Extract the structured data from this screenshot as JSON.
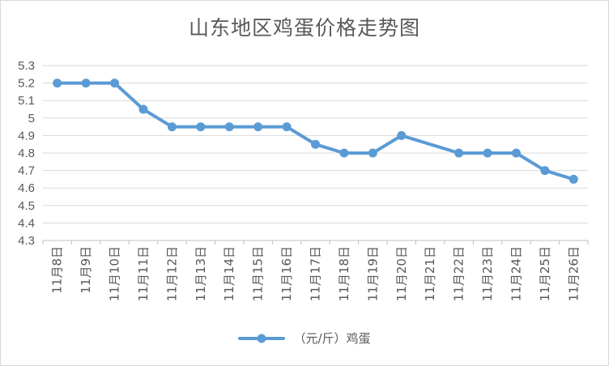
{
  "title": "山东地区鸡蛋价格走势图",
  "chart_data": {
    "type": "line",
    "title": "山东地区鸡蛋价格走势图",
    "xlabel": "",
    "ylabel": "",
    "ylim": [
      4.3,
      5.3
    ],
    "y_ticks": [
      "5.3",
      "5.2",
      "5.1",
      "5",
      "4.9",
      "4.8",
      "4.7",
      "4.6",
      "4.5",
      "4.4",
      "4.3"
    ],
    "y_tick_values": [
      5.3,
      5.2,
      5.1,
      5.0,
      4.9,
      4.8,
      4.7,
      4.6,
      4.5,
      4.4,
      4.3
    ],
    "categories": [
      "11月8日",
      "11月9日",
      "11月10日",
      "11月11日",
      "11月12日",
      "11月13日",
      "11月14日",
      "11月15日",
      "11月16日",
      "11月17日",
      "11月18日",
      "11月19日",
      "11月20日",
      "11月21日",
      "11月22日",
      "11月23日",
      "11月24日",
      "11月25日",
      "11月26日"
    ],
    "series": [
      {
        "name": "（元/斤）鸡蛋",
        "color": "#5b9bd5",
        "values": [
          5.2,
          5.2,
          5.2,
          5.05,
          4.95,
          4.95,
          4.95,
          4.95,
          4.95,
          4.85,
          4.8,
          4.8,
          4.9,
          null,
          4.8,
          4.8,
          4.8,
          4.7,
          4.65
        ]
      }
    ],
    "grid": true,
    "legend_position": "bottom"
  }
}
